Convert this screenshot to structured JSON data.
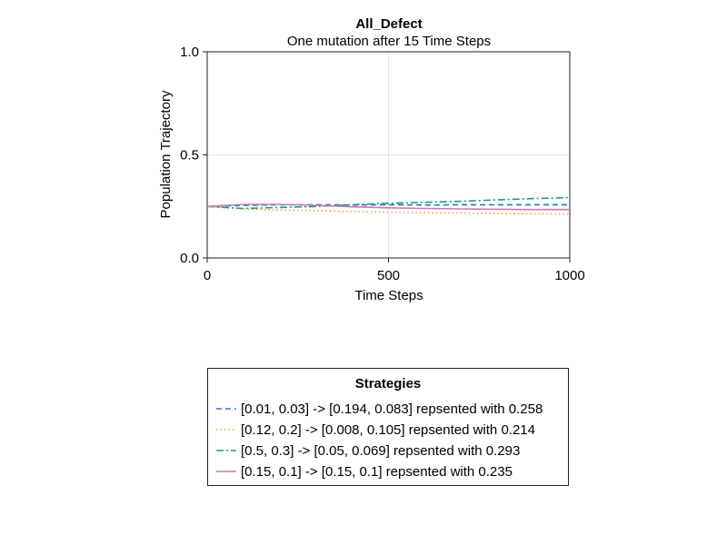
{
  "chart_data": {
    "type": "line",
    "title": "All_Defect",
    "subtitle": "One mutation after 15 Time Steps",
    "xlabel": "Time Steps",
    "ylabel": "Population Trajectory",
    "xlim": [
      0,
      1000
    ],
    "ylim": [
      0,
      1
    ],
    "xticks": [
      0,
      500,
      1000
    ],
    "xtick_labels": [
      "0",
      "500",
      "1000"
    ],
    "yticks": [
      0,
      0.5,
      1
    ],
    "ytick_labels": [
      "0.0",
      "0.5",
      "1.0"
    ],
    "grid": true,
    "legend_title": "Strategies",
    "legend_position": "below",
    "series": [
      {
        "name": "[0.01, 0.03] -> [0.194, 0.083] repsented with 0.258",
        "color": "#1f77d0",
        "dash": "dashed",
        "x": [
          0,
          100,
          200,
          300,
          400,
          500,
          600,
          700,
          800,
          900,
          1000
        ],
        "y": [
          0.25,
          0.255,
          0.258,
          0.258,
          0.257,
          0.258,
          0.257,
          0.258,
          0.258,
          0.258,
          0.258
        ]
      },
      {
        "name": "[0.12, 0.2] -> [0.008, 0.105] repsented with 0.214",
        "color": "#f29a3a",
        "dash": "dotted",
        "x": [
          0,
          100,
          200,
          300,
          400,
          500,
          600,
          700,
          800,
          900,
          1000
        ],
        "y": [
          0.25,
          0.238,
          0.232,
          0.23,
          0.225,
          0.222,
          0.22,
          0.218,
          0.216,
          0.214,
          0.214
        ]
      },
      {
        "name": "[0.5, 0.3] -> [0.05, 0.069] repsented with 0.293",
        "color": "#1f9f6e",
        "dash": "dashdot",
        "x": [
          0,
          100,
          200,
          300,
          400,
          500,
          600,
          700,
          800,
          900,
          1000
        ],
        "y": [
          0.25,
          0.24,
          0.245,
          0.25,
          0.258,
          0.265,
          0.27,
          0.275,
          0.282,
          0.288,
          0.293
        ]
      },
      {
        "name": "[0.15, 0.1] -> [0.15, 0.1] repsented with 0.235",
        "color": "#cc78b4",
        "dash": "solid",
        "x": [
          0,
          100,
          200,
          300,
          400,
          500,
          600,
          700,
          800,
          900,
          1000
        ],
        "y": [
          0.25,
          0.26,
          0.26,
          0.255,
          0.248,
          0.243,
          0.24,
          0.238,
          0.236,
          0.235,
          0.235
        ]
      }
    ]
  }
}
